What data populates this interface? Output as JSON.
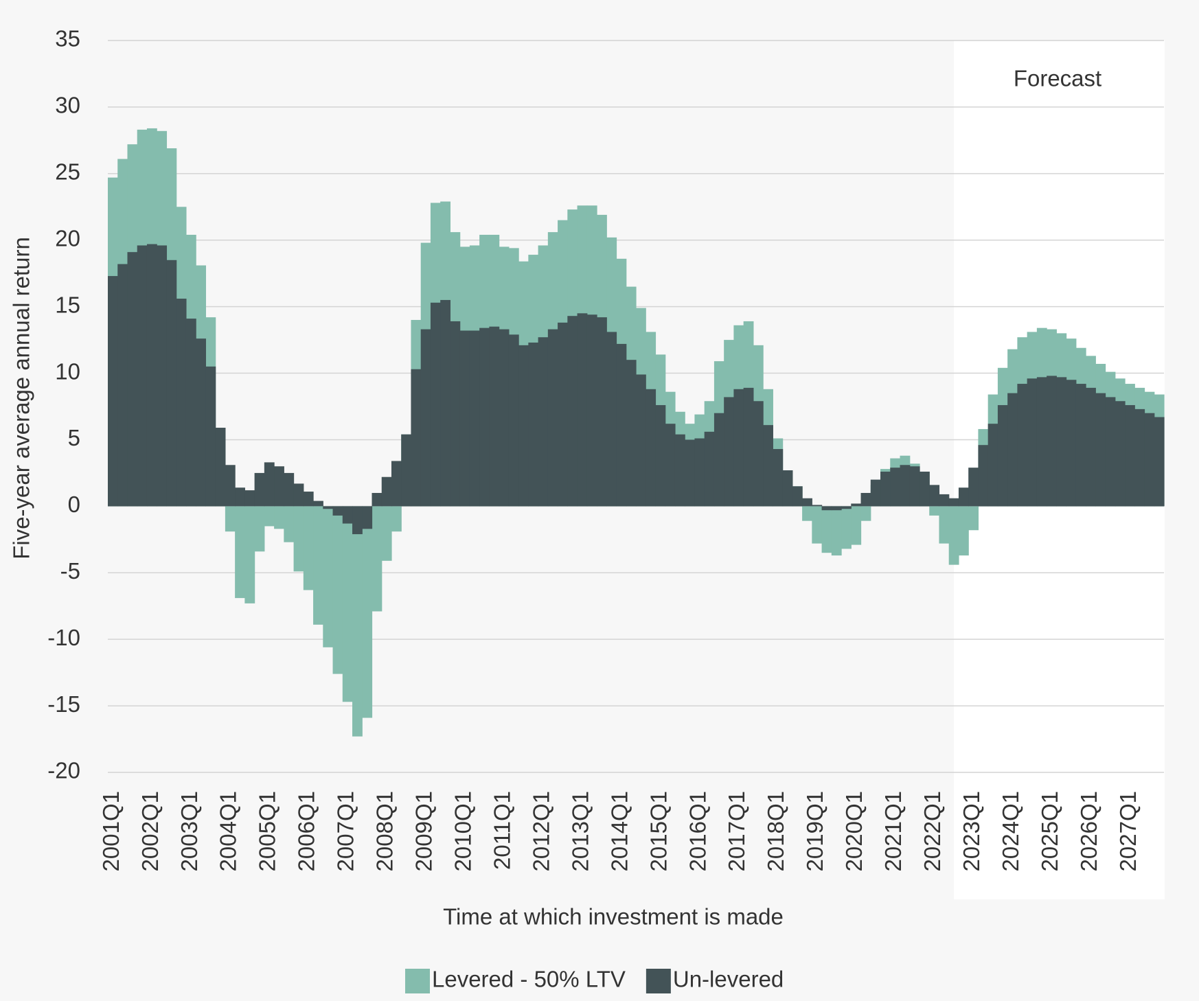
{
  "chart_data": {
    "type": "overlap-bar",
    "ylabel": "Five-year average annual return",
    "xlabel": "Time at which investment is made",
    "annotation": "Forecast",
    "categories": [
      "2001Q1",
      null,
      null,
      null,
      "2002Q1",
      null,
      null,
      null,
      "2003Q1",
      null,
      null,
      null,
      "2004Q1",
      null,
      null,
      null,
      "2005Q1",
      null,
      null,
      null,
      "2006Q1",
      null,
      null,
      null,
      "2007Q1",
      null,
      null,
      null,
      "2008Q1",
      null,
      null,
      null,
      "2009Q1",
      null,
      null,
      null,
      "2010Q1",
      null,
      null,
      null,
      "2011Q1",
      null,
      null,
      null,
      "2012Q1",
      null,
      null,
      null,
      "2013Q1",
      null,
      null,
      null,
      "2014Q1",
      null,
      null,
      null,
      "2015Q1",
      null,
      null,
      null,
      "2016Q1",
      null,
      null,
      null,
      "2017Q1",
      null,
      null,
      null,
      "2018Q1",
      null,
      null,
      null,
      "2019Q1",
      null,
      null,
      null,
      "2020Q1",
      null,
      null,
      null,
      "2021Q1",
      null,
      null,
      null,
      "2022Q1",
      null,
      null,
      null,
      "2023Q1",
      null,
      null,
      null,
      "2024Q1",
      null,
      null,
      null,
      "2025Q1",
      null,
      null,
      null,
      "2026Q1",
      null,
      null,
      null,
      "2027Q1",
      null,
      null,
      null
    ],
    "series": [
      {
        "name": "Levered - 50% LTV",
        "color": "#84bcad",
        "values": [
          24.7,
          26.1,
          27.2,
          28.3,
          28.4,
          28.2,
          26.9,
          22.5,
          20.4,
          18.1,
          14.2,
          5.9,
          -1.9,
          -6.9,
          -7.3,
          -3.4,
          -1.5,
          -1.7,
          -2.7,
          -4.9,
          -6.3,
          -8.9,
          -10.6,
          -12.6,
          -14.7,
          -17.3,
          -15.9,
          -7.9,
          -4.1,
          -1.9,
          5.4,
          14.0,
          19.8,
          22.8,
          22.9,
          20.6,
          19.5,
          19.6,
          20.4,
          20.4,
          19.5,
          19.4,
          18.4,
          18.9,
          19.6,
          20.6,
          21.5,
          22.3,
          22.6,
          22.6,
          21.9,
          20.2,
          18.6,
          16.5,
          14.9,
          13.1,
          11.4,
          8.6,
          7.1,
          6.2,
          6.9,
          7.9,
          10.9,
          12.5,
          13.6,
          13.9,
          12.1,
          8.8,
          5.1,
          2.7,
          1.5,
          -1.1,
          -2.8,
          -3.5,
          -3.7,
          -3.2,
          -2.9,
          -1.1,
          1.6,
          2.8,
          3.6,
          3.8,
          3.2,
          2.6,
          -0.7,
          -2.8,
          -4.4,
          -3.7,
          -1.8,
          5.8,
          8.4,
          10.4,
          11.8,
          12.7,
          13.1,
          13.4,
          13.3,
          13.0,
          12.6,
          11.9,
          11.3,
          10.7,
          10.1,
          9.6,
          9.2,
          8.9,
          8.6,
          8.4
        ]
      },
      {
        "name": "Un-levered",
        "color": "#435357",
        "values": [
          17.3,
          18.2,
          19.1,
          19.6,
          19.7,
          19.6,
          18.5,
          15.6,
          14.1,
          12.6,
          10.5,
          5.9,
          3.1,
          1.4,
          1.2,
          2.5,
          3.3,
          3.0,
          2.5,
          1.7,
          1.1,
          0.4,
          -0.2,
          -0.7,
          -1.3,
          -2.1,
          -1.7,
          1.0,
          2.2,
          3.4,
          5.4,
          10.3,
          13.3,
          15.3,
          15.5,
          13.9,
          13.2,
          13.2,
          13.4,
          13.5,
          13.3,
          12.9,
          12.1,
          12.3,
          12.7,
          13.3,
          13.8,
          14.3,
          14.5,
          14.4,
          14.2,
          13.1,
          12.2,
          11.0,
          9.9,
          8.8,
          7.6,
          6.2,
          5.4,
          5.0,
          5.1,
          5.6,
          7.0,
          8.2,
          8.8,
          8.9,
          7.9,
          6.1,
          4.3,
          2.7,
          1.5,
          0.6,
          0.1,
          -0.3,
          -0.3,
          -0.2,
          0.2,
          1.0,
          2.0,
          2.6,
          2.9,
          3.1,
          3.0,
          2.6,
          1.6,
          0.9,
          0.6,
          1.4,
          2.9,
          4.6,
          6.2,
          7.6,
          8.5,
          9.2,
          9.6,
          9.7,
          9.8,
          9.7,
          9.5,
          9.2,
          8.9,
          8.5,
          8.2,
          7.9,
          7.6,
          7.3,
          7.0,
          6.7
        ]
      }
    ],
    "ylim": [
      -20,
      35
    ],
    "yticks": [
      -20,
      -15,
      -10,
      -5,
      0,
      5,
      10,
      15,
      20,
      25,
      30,
      35
    ],
    "grid": true,
    "legend": "bottom"
  }
}
